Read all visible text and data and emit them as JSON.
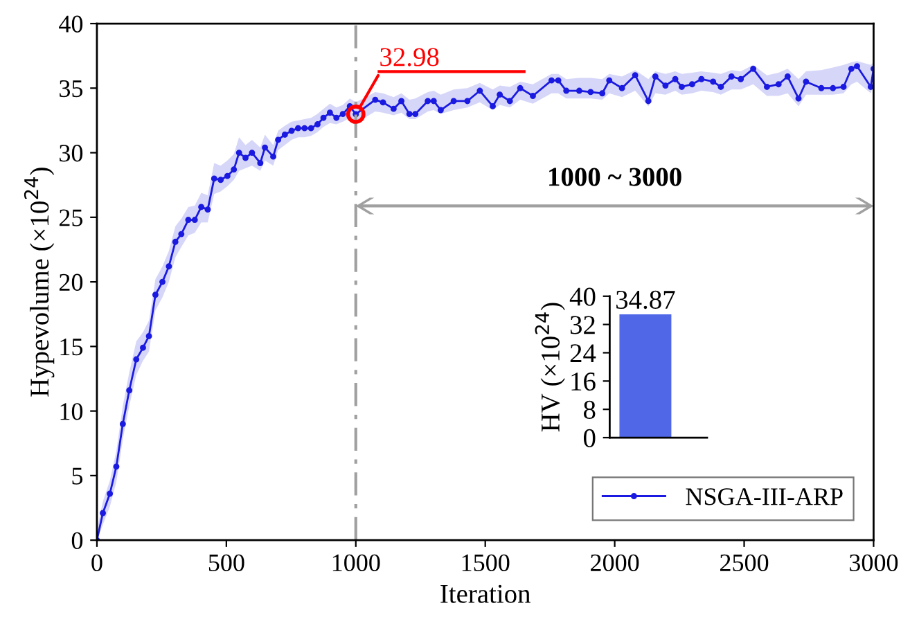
{
  "chart_data": [
    {
      "type": "line",
      "xlabel": "Iteration",
      "ylabel": "Hypevolume (×10$^{24}$)",
      "xlim": [
        0,
        3000
      ],
      "xticks": [
        0,
        500,
        1000,
        1500,
        2000,
        2500,
        3000
      ],
      "ylim": [
        0,
        40
      ],
      "yticks": [
        0,
        5,
        10,
        15,
        20,
        25,
        30,
        35,
        40
      ],
      "grid": false,
      "legend": "bottom right",
      "marker": "circle",
      "line_style": "solid",
      "series": [
        {
          "name": "NSGA-III-ARP",
          "color": "#1a1ae0",
          "x": [
            0,
            23,
            50,
            75,
            100,
            125,
            152,
            178,
            201,
            226,
            253,
            278,
            303,
            326,
            353,
            378,
            403,
            428,
            453,
            478,
            504,
            529,
            549,
            574,
            599,
            631,
            649,
            681,
            700,
            726,
            752,
            777,
            802,
            827,
            852,
            875,
            900,
            925,
            950,
            977,
            1000,
            1075,
            1105,
            1146,
            1176,
            1207,
            1230,
            1278,
            1301,
            1328,
            1378,
            1431,
            1479,
            1529,
            1556,
            1595,
            1635,
            1684,
            1756,
            1782,
            1813,
            1863,
            1907,
            1952,
            1979,
            2028,
            2079,
            2130,
            2157,
            2196,
            2234,
            2259,
            2299,
            2335,
            2380,
            2410,
            2451,
            2487,
            2535,
            2588,
            2633,
            2668,
            2710,
            2739,
            2798,
            2843,
            2884,
            2914,
            2936,
            2989,
            3000
          ],
          "values": [
            0,
            2.1,
            3.6,
            5.7,
            9.0,
            11.6,
            14.0,
            14.9,
            15.8,
            19.0,
            20.0,
            21.2,
            23.1,
            23.7,
            24.8,
            24.8,
            25.8,
            25.6,
            28.0,
            27.9,
            28.2,
            28.7,
            30.0,
            29.6,
            30.0,
            29.2,
            30.4,
            29.7,
            31.0,
            31.4,
            31.7,
            31.9,
            31.9,
            31.9,
            32.2,
            32.7,
            33.1,
            32.7,
            33.0,
            33.6,
            32.98,
            34.1,
            33.9,
            33.4,
            34.0,
            33.0,
            33.0,
            34.0,
            34.0,
            33.3,
            34.0,
            34.0,
            34.8,
            33.6,
            34.5,
            34.0,
            35.0,
            34.4,
            35.6,
            35.6,
            34.8,
            34.8,
            34.7,
            34.6,
            35.6,
            35.0,
            36.0,
            34.0,
            35.9,
            35.2,
            35.7,
            35.1,
            35.3,
            35.7,
            35.5,
            35.1,
            35.9,
            35.7,
            36.5,
            35.1,
            35.3,
            35.9,
            34.2,
            35.5,
            35.0,
            35.0,
            35.1,
            36.5,
            36.7,
            35.1,
            36.5
          ],
          "lower": [
            0,
            1.2,
            2.6,
            4.5,
            7.8,
            10.4,
            12.8,
            13.9,
            14.6,
            17.8,
            18.8,
            20.0,
            21.9,
            22.7,
            23.6,
            23.8,
            24.6,
            24.6,
            26.8,
            27.0,
            27.4,
            27.9,
            28.6,
            28.8,
            29.0,
            28.6,
            29.4,
            29.0,
            30.2,
            30.6,
            31.0,
            31.2,
            31.2,
            31.3,
            31.6,
            32.0,
            32.3,
            32.2,
            32.4,
            32.7,
            32.3,
            33.2,
            33.1,
            32.9,
            33.1,
            32.6,
            32.6,
            33.2,
            33.3,
            33.0,
            33.3,
            33.5,
            33.9,
            33.3,
            33.7,
            33.5,
            34.1,
            33.8,
            34.6,
            34.6,
            34.2,
            34.2,
            34.2,
            34.1,
            34.6,
            34.3,
            34.8,
            33.6,
            34.6,
            34.5,
            34.8,
            34.5,
            34.6,
            34.8,
            34.7,
            34.5,
            34.9,
            34.9,
            35.3,
            34.4,
            34.4,
            34.6,
            33.6,
            34.5,
            34.5,
            34.5,
            34.6,
            35.3,
            35.5,
            34.6,
            35.3
          ],
          "upper": [
            0.8,
            3.0,
            4.6,
            6.9,
            10.4,
            13.0,
            15.4,
            16.1,
            17.0,
            20.2,
            21.2,
            22.4,
            24.3,
            24.9,
            25.8,
            25.9,
            26.9,
            26.7,
            29.2,
            29.0,
            29.4,
            29.9,
            31.2,
            30.6,
            31.0,
            30.4,
            31.4,
            30.6,
            31.7,
            32.1,
            32.4,
            32.5,
            32.6,
            32.7,
            33.0,
            33.4,
            33.8,
            33.5,
            33.7,
            34.2,
            33.9,
            34.7,
            34.6,
            34.3,
            34.6,
            34.1,
            34.2,
            34.7,
            34.8,
            34.5,
            34.9,
            35.0,
            35.4,
            34.9,
            35.2,
            35.1,
            35.5,
            35.3,
            36.1,
            36.1,
            35.7,
            35.8,
            35.8,
            35.7,
            36.1,
            35.9,
            36.4,
            35.7,
            36.3,
            36.1,
            36.3,
            36.1,
            36.2,
            36.3,
            36.2,
            36.1,
            36.4,
            36.3,
            36.8,
            36.0,
            36.2,
            36.5,
            35.7,
            36.3,
            36.4,
            36.6,
            36.8,
            37.0,
            37.1,
            36.8,
            37.0
          ]
        }
      ],
      "ref_lines": [
        {
          "axis": "x",
          "value": 1000,
          "color": "#a0a0a0",
          "line_style": "dashed"
        }
      ],
      "annotations": [
        {
          "text": "32.98",
          "x": 1000,
          "y": 32.98
        },
        "1000 ~ 3000"
      ]
    },
    {
      "type": "bar",
      "ylabel": "HV (×10$^{24}$)",
      "categories": [
        null
      ],
      "values": [
        34.87
      ],
      "color": "#5068e8",
      "ylim": [
        0,
        40
      ],
      "yticks": [
        0,
        8,
        16,
        24,
        32,
        40
      ],
      "data_labels": true,
      "grid": false,
      "tick_labels": "y"
    }
  ]
}
